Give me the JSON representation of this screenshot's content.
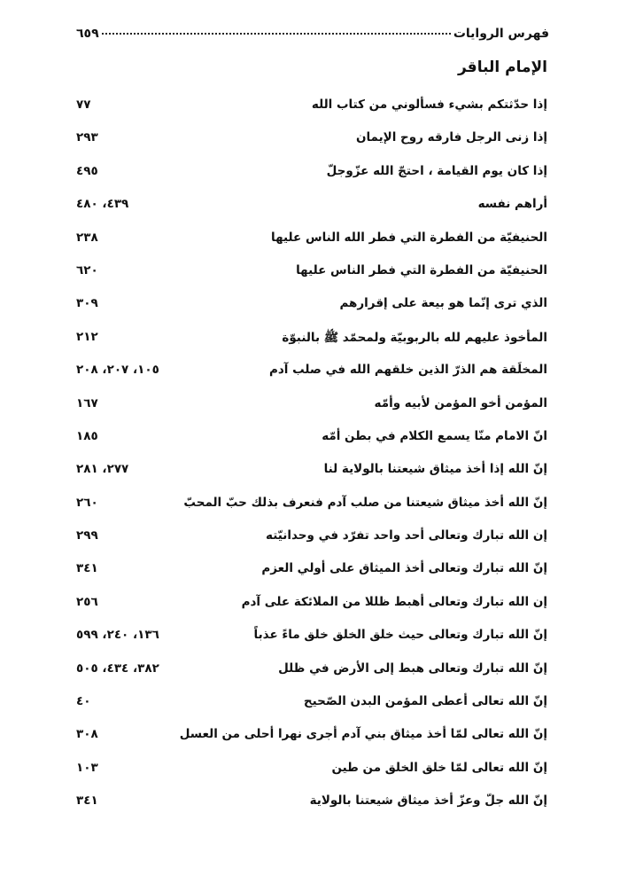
{
  "header": {
    "title": "فهرس الروايات",
    "page_number": "٦٥٩"
  },
  "section_title": "الإمام الباقر",
  "entries": [
    {
      "text": "إذا حدّثتكم بشيء فسألوني من كتاب الله",
      "pages": "٧٧"
    },
    {
      "text": "إذا زنى الرجل فارقه روح الإيمان",
      "pages": "٢٩٣"
    },
    {
      "text": "إذا كان يوم القيامة ، احتجّ الله عزّوجلّ",
      "pages": "٤٩٥"
    },
    {
      "text": "أراهم نفسه",
      "pages": "٤٣٩، ٤٨٠"
    },
    {
      "text": "الحنيفيّة من الفطرة التي فطر الله الناس عليها",
      "pages": "٢٣٨"
    },
    {
      "text": "الحنيفيّة من الفطرة التي فطر الناس عليها",
      "pages": "٦٢٠"
    },
    {
      "text": "الذي ترى إنّما هو بيعة على إقرارهم",
      "pages": "٣٠٩"
    },
    {
      "text": "المأخوذ عليهم لله بالربوبيّة ولمحمّد ﷺ بالنبوّة",
      "pages": "٢١٢"
    },
    {
      "text": "المخلَقة هم الذرّ الذين خلقهم الله في صلب آدم",
      "pages": "١٠٥، ٢٠٧، ٢٠٨"
    },
    {
      "text": "المؤمن أخو المؤمن لأبيه وأمّه",
      "pages": "١٦٧"
    },
    {
      "text": "انّ الامام منّا يسمع الكلام في بطن أمّه",
      "pages": "١٨٥"
    },
    {
      "text": "إنّ الله إذا أخذ ميثاق شيعتنا بالولاية لنا",
      "pages": "٢٧٧، ٢٨١"
    },
    {
      "text": "إنّ الله أخذ ميثاق شيعتنا من صلب آدم فنعرف بذلك حبّ المحبّ",
      "pages": "٢٦٠"
    },
    {
      "text": "إن الله تبارك وتعالى أحد واحد تفرّد في وحدانيّته",
      "pages": "٢٩٩"
    },
    {
      "text": "إنّ الله تبارك وتعالى أخذ الميثاق على أولي العزم",
      "pages": "٣٤١"
    },
    {
      "text": "إن الله تبارك وتعالى أهبط ظللا من الملائكة على آدم",
      "pages": "٢٥٦"
    },
    {
      "text": "إنّ الله تبارك وتعالى حيث خلق الخلق خلق ماءً عذباً",
      "pages": "١٣٦، ٢٤٠، ٥٩٩"
    },
    {
      "text": "إنّ الله تبارك وتعالى هبط إلى الأرض في ظلل",
      "pages": "٣٨٢، ٤٣٤، ٥٠٥"
    },
    {
      "text": "إنّ الله تعالى أعطى المؤمن البدن الصّحيح",
      "pages": "٤٠"
    },
    {
      "text": "إنّ الله تعالى لمّا أخذ ميثاق بني آدم أجرى نهرا أحلى من العسل",
      "pages": "٣٠٨"
    },
    {
      "text": "إنّ الله تعالى لمّا خلق الخلق من طين",
      "pages": "١٠٣"
    },
    {
      "text": "إنّ الله جلّ وعزّ أخذ ميثاق شيعتنا بالولاية",
      "pages": "٣٤١"
    }
  ]
}
